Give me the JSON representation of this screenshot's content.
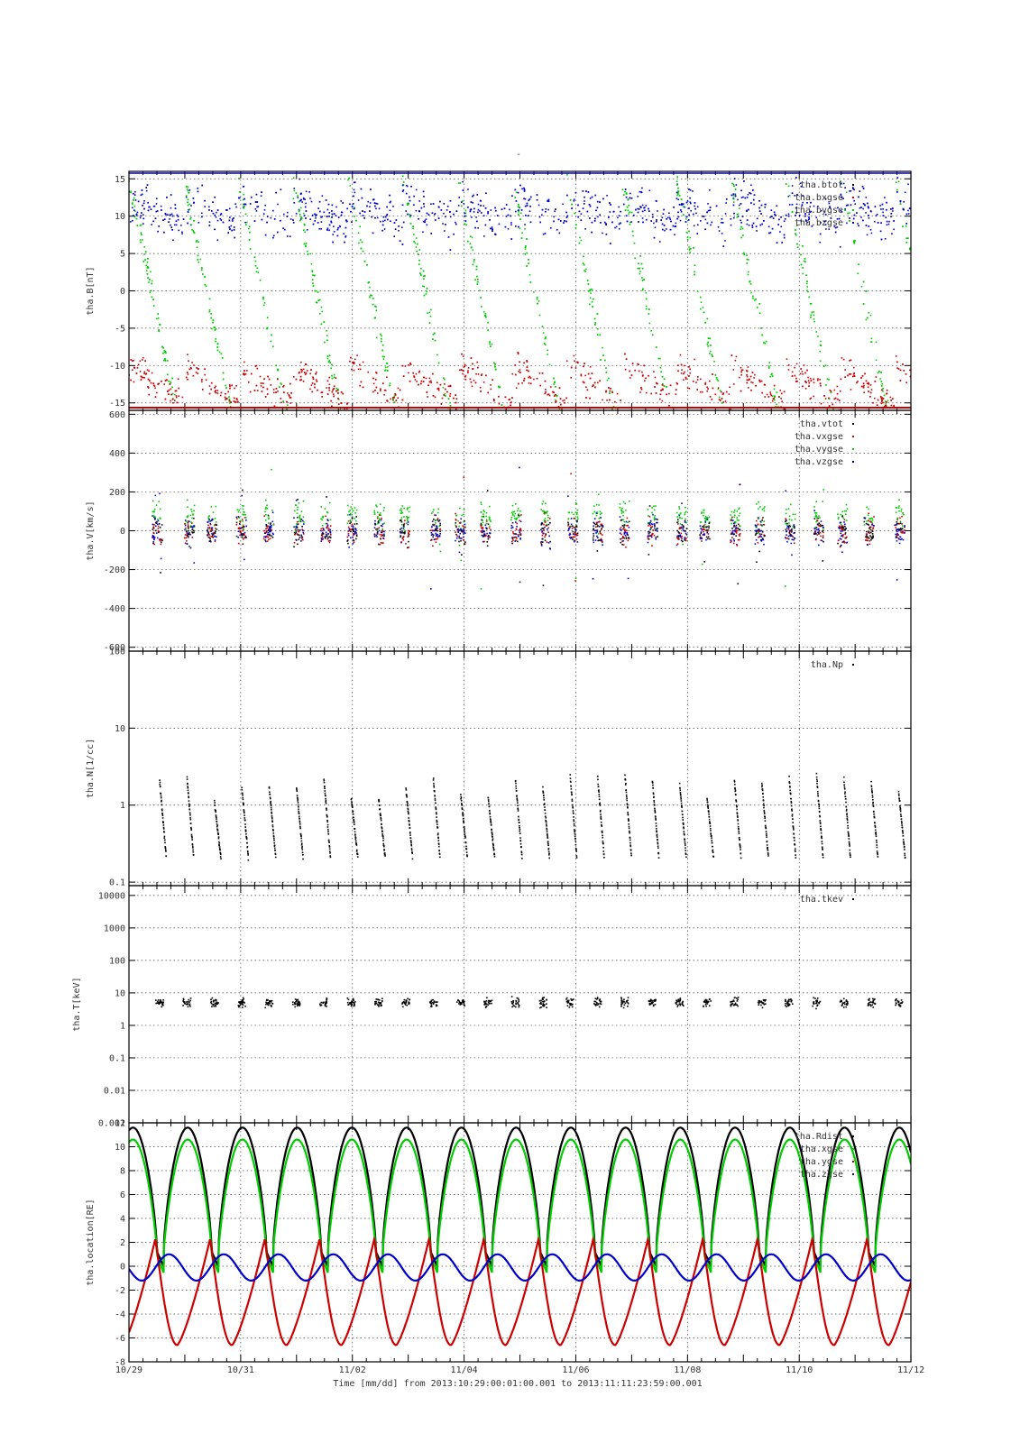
{
  "page": {
    "dash": "-"
  },
  "footer": {
    "time_label": "Time [mm/dd]  from 2013:10:29:00:01:00.001  to  2013:11:11:23:59:00.001"
  },
  "colors": {
    "black": "#000000",
    "red": "#cc0000",
    "green": "#00cc00",
    "blue": "#0000cc"
  },
  "chart_data": [
    {
      "type": "scatter",
      "ylabel": "tha.B[nT]",
      "ylim": [
        -16,
        16
      ],
      "yticks": [
        15,
        10,
        5,
        0,
        -5,
        -10,
        -15
      ],
      "grid": true,
      "legend": [
        "tha.btot",
        "tha.bxgse",
        "tha.bygse",
        "tha.bzgse"
      ],
      "legend_placement": "top-right",
      "series": [
        {
          "name": "tha.btot",
          "color": "black"
        },
        {
          "name": "tha.bxgse",
          "color": "red"
        },
        {
          "name": "tha.bygse",
          "color": "green"
        },
        {
          "name": "tha.bzgse",
          "color": "blue"
        }
      ]
    },
    {
      "type": "scatter",
      "ylabel": "tha.V[km/s]",
      "ylim": [
        -620,
        620
      ],
      "yticks": [
        600,
        400,
        200,
        0,
        -200,
        -400,
        -600
      ],
      "grid": true,
      "legend": [
        "tha.vtot",
        "tha.vxgse",
        "tha.vygse",
        "tha.vzgse"
      ],
      "legend_placement": "top-right",
      "series": [
        {
          "name": "tha.vtot",
          "color": "black"
        },
        {
          "name": "tha.vxgse",
          "color": "red"
        },
        {
          "name": "tha.vygse",
          "color": "green"
        },
        {
          "name": "tha.vzgse",
          "color": "blue"
        }
      ]
    },
    {
      "type": "scatter",
      "ylabel": "tha.N[1/cc]",
      "scale": "log",
      "ylim": [
        0.09,
        100
      ],
      "yticks": [
        100,
        10,
        1,
        0.1
      ],
      "grid": true,
      "legend": [
        "tha.Np"
      ],
      "legend_placement": "top-right",
      "series": [
        {
          "name": "tha.Np",
          "color": "black"
        }
      ]
    },
    {
      "type": "scatter",
      "ylabel": "tha.T[keV]",
      "scale": "log",
      "ylim": [
        0.001,
        20000
      ],
      "yticks": [
        10000,
        1000,
        100,
        10,
        1,
        0.1,
        0.01,
        0.001
      ],
      "grid": true,
      "legend": [
        "tha.tkev"
      ],
      "legend_placement": "top-right",
      "series": [
        {
          "name": "tha.tkev",
          "color": "black"
        }
      ]
    },
    {
      "type": "line",
      "ylabel": "tha.location[RE]",
      "ylim": [
        -8,
        12
      ],
      "yticks": [
        12,
        10,
        8,
        6,
        4,
        2,
        0,
        -2,
        -4,
        -6,
        -8
      ],
      "grid": true,
      "legend": [
        "tha.Rdist",
        "tha.xgse",
        "tha.ygse",
        "tha.zgse"
      ],
      "legend_placement": "top-right",
      "orbit_period_days": 0.98,
      "series": [
        {
          "name": "tha.Rdist",
          "color": "black",
          "apogee": 11.6,
          "perigee": -1.3
        },
        {
          "name": "tha.xgse",
          "color": "green",
          "max": 10.6
        },
        {
          "name": "tha.ygse",
          "color": "red",
          "min": -6.6,
          "max": 2.3
        },
        {
          "name": "tha.zgse",
          "color": "blue",
          "min": -1.2,
          "max": 1.0
        }
      ]
    }
  ],
  "x_axis": {
    "start": "2013-10-29 00:01",
    "end": "2013-11-11 23:59",
    "tick_labels": [
      "10/29",
      "10/31",
      "11/02",
      "11/04",
      "11/06",
      "11/08",
      "11/10",
      "11/12"
    ]
  }
}
